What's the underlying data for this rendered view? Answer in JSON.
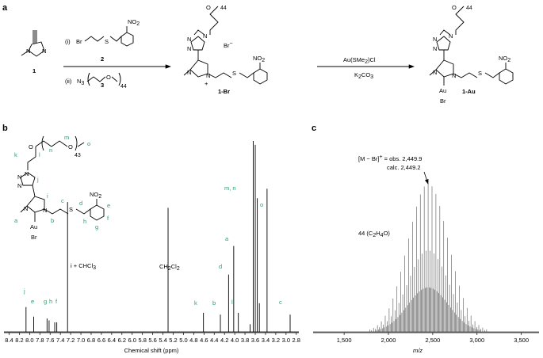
{
  "panels": {
    "a": "a",
    "b": "b",
    "c": "c"
  },
  "scheme": {
    "reagent_i_tag": "(i)",
    "reagent_i_text": "Br",
    "reagent_i_sulfur": "S",
    "reagent_i_no2": "NO",
    "reagent_i_no2_sub": "2",
    "reagent_i_number": "2",
    "reagent_ii_tag": "(ii)",
    "reagent_ii_n3": "N",
    "reagent_ii_n3_sub": "3",
    "reagent_ii_o": "O",
    "reagent_ii_sub": "44",
    "reagent_ii_number": "3",
    "compound1_n1": "N",
    "compound1_n2": "N",
    "compound1_label": "1",
    "compound1br_label": "1-Br",
    "compound1br_anion": "Br",
    "compound1br_anion_charge": "−",
    "compound1br_plus": "+",
    "compound1br_o": "O",
    "compound1br_sub": "44",
    "compound1br_no2": "NO",
    "compound1br_no2_sub": "2",
    "compound1br_s": "S",
    "step2_reagent": "Au(SMe",
    "step2_reagent_sub": "2",
    "step2_reagent_end": ")Cl",
    "step2_base": "K",
    "step2_base_sub": "2",
    "step2_base_end": "CO",
    "step2_base_sub2": "3",
    "compound1au_label": "1-Au",
    "compound1au_au": "Au",
    "compound1au_br": "Br",
    "compound1au_o": "O",
    "compound1au_sub": "44",
    "compound1au_no2": "NO",
    "compound1au_no2_sub": "2",
    "compound1au_s": "S",
    "triazole_n": "N"
  },
  "nmr_structure": {
    "labels": [
      "m",
      "n",
      "o",
      "k",
      "l",
      "j",
      "i",
      "c",
      "d",
      "e",
      "f",
      "g",
      "h",
      "a",
      "b"
    ],
    "sub43": "43",
    "o_atom": "O",
    "no2": "NO",
    "no2_sub": "2",
    "s": "S",
    "au": "Au",
    "br": "Br",
    "n": "N"
  },
  "nmr": {
    "xlabel": "Chemical shift (ppm)",
    "xticks": [
      "8.4",
      "8.2",
      "8.0",
      "7.8",
      "7.6",
      "7.4",
      "7.2",
      "7.0",
      "6.8",
      "6.6",
      "6.4",
      "6.2",
      "6.0",
      "5.8",
      "5.6",
      "5.4",
      "5.2",
      "5.0",
      "4.8",
      "4.6",
      "4.4",
      "4.2",
      "4.0",
      "3.8",
      "3.6",
      "3.4",
      "3.2",
      "3.0",
      "2.8"
    ],
    "annotations": {
      "i_chcl3": "i + CHCl",
      "i_chcl3_sub": "3",
      "ch2cl2": "CH",
      "ch2cl2_sub": "2",
      "ch2cl2_cl": "Cl",
      "ch2cl2_sub2": "2",
      "mn": "m, n",
      "o": "o",
      "a": "a",
      "d": "d",
      "b": "b",
      "k": "k",
      "l": "l",
      "c": "c",
      "j": "j",
      "e": "e",
      "g": "g",
      "h": "h",
      "f": "f"
    }
  },
  "ms": {
    "xlabel": "m/z",
    "xticks": [
      "1,500",
      "2,000",
      "2,500",
      "3,000",
      "3,500"
    ],
    "annotation_line1": "[M − Br]",
    "annotation_line1_sup": "+",
    "annotation_line1_end": " = obs. 2,449.9",
    "annotation_line2": "calc. 2,449.2",
    "repeat_label": "44 (C",
    "repeat_sub1": "2",
    "repeat_mid": "H",
    "repeat_sub2": "4",
    "repeat_end": "O)"
  },
  "colors": {
    "label_green": "#2a9d6b",
    "spectrum_gray": "#555555"
  },
  "chart_data": [
    {
      "type": "line",
      "xlabel": "Chemical shift (ppm)",
      "xlim": [
        8.5,
        2.75
      ],
      "peaks": [
        {
          "x": 8.07,
          "h": 0.13
        },
        {
          "x": 7.92,
          "h": 0.08
        },
        {
          "x": 7.66,
          "h": 0.07
        },
        {
          "x": 7.62,
          "h": 0.06
        },
        {
          "x": 7.51,
          "h": 0.05
        },
        {
          "x": 7.47,
          "h": 0.05
        },
        {
          "x": 7.26,
          "h": 0.68
        },
        {
          "x": 5.3,
          "h": 0.65
        },
        {
          "x": 4.61,
          "h": 0.1
        },
        {
          "x": 4.28,
          "h": 0.09
        },
        {
          "x": 4.12,
          "h": 0.3
        },
        {
          "x": 4.02,
          "h": 0.45
        },
        {
          "x": 3.93,
          "h": 0.1
        },
        {
          "x": 3.7,
          "h": 0.04
        },
        {
          "x": 3.64,
          "h": 1.0
        },
        {
          "x": 3.6,
          "h": 0.98
        },
        {
          "x": 3.56,
          "h": 0.7
        },
        {
          "x": 3.52,
          "h": 0.15
        },
        {
          "x": 3.37,
          "h": 0.75
        },
        {
          "x": 2.92,
          "h": 0.09
        }
      ]
    },
    {
      "type": "line",
      "xlabel": "m/z",
      "xlim": [
        1150,
        3700
      ],
      "envelope_center": 2449,
      "envelope_sigma": 230,
      "repeat_spacing": 44
    }
  ]
}
